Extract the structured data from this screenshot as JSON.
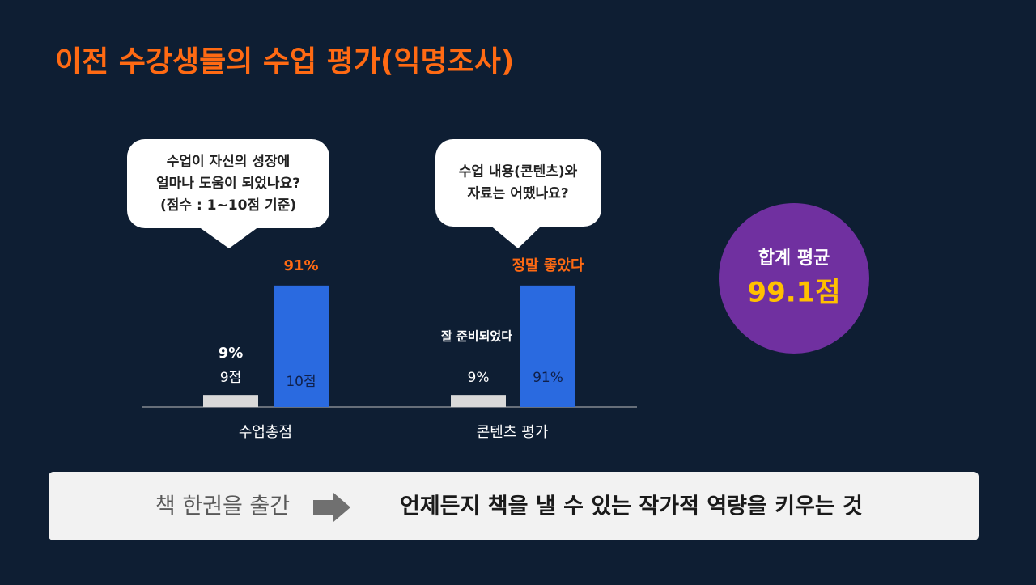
{
  "slide": {
    "title": "이전 수강생들의 수업 평가(익명조사)",
    "callouts": [
      [
        "수업이 자신의 성장에",
        "얼마나 도움이 되었나요?",
        "(점수 : 1~10점 기준)"
      ],
      [
        "수업 내용(콘텐츠)와",
        "자료는 어땠나요?"
      ]
    ],
    "summary": {
      "label": "합계 평균",
      "value": "99.1점"
    },
    "banner": {
      "from": "책 한권을 출간",
      "to": "언제든지 책을 낼 수 있는 작가적 역량을 키우는 것"
    }
  },
  "chart_data": {
    "type": "bar",
    "categories": [
      "수업총점",
      "콘텐츠 평가"
    ],
    "series": [
      {
        "color": "#d9d9d9",
        "values": [
          9,
          9
        ],
        "top_labels": [
          "9%",
          "잘 준비되었다"
        ],
        "inner_labels": [
          "9점",
          "9%"
        ]
      },
      {
        "color": "#2a6ae0",
        "values": [
          91,
          91
        ],
        "top_labels": [
          "91%",
          "정말 좋았다"
        ],
        "inner_labels": [
          "10점",
          "91%"
        ]
      }
    ]
  }
}
